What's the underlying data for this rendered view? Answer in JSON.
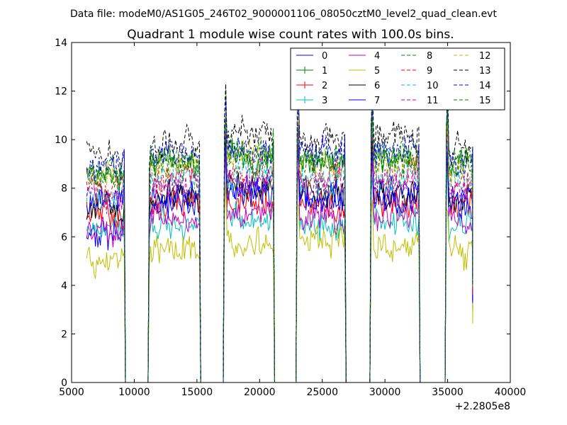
{
  "chart_data": {
    "type": "line",
    "suptitle": "Data file: modeM0/AS1G05_246T02_9000001106_08050cztM0_level2_quad_clean.evt",
    "title": "Quadrant 1 module wise count rates with 100.0s bins.",
    "xlabel": "",
    "ylabel": "",
    "x_offset_label": "+2.2805e8",
    "xlim": [
      5000,
      40000
    ],
    "ylim": [
      0,
      14
    ],
    "xticks": [
      5000,
      10000,
      15000,
      20000,
      25000,
      30000,
      35000,
      40000
    ],
    "xtick_labels": [
      "5000",
      "10000",
      "15000",
      "20000",
      "25000",
      "30000",
      "35000",
      "40000"
    ],
    "yticks": [
      0,
      2,
      4,
      6,
      8,
      10,
      12,
      14
    ],
    "ytick_labels": [
      "0",
      "2",
      "4",
      "6",
      "8",
      "10",
      "12",
      "14"
    ],
    "grid": false,
    "legend_position": "top-right",
    "bin_width_s": 100,
    "segments": [
      {
        "start": 6200,
        "end": 9200
      },
      {
        "start": 11200,
        "end": 15200
      },
      {
        "start": 17200,
        "end": 21100
      },
      {
        "start": 23000,
        "end": 26800
      },
      {
        "start": 28900,
        "end": 32700
      },
      {
        "start": 34900,
        "end": 37000
      }
    ],
    "series": [
      {
        "name": "0",
        "color": "#0000ff",
        "dash": "solid",
        "marker": "none",
        "levels": [
          6.0,
          7.8,
          8.0,
          7.5,
          7.9,
          7.6
        ]
      },
      {
        "name": "1",
        "color": "#008000",
        "dash": "solid",
        "marker": "plus",
        "levels": [
          8.6,
          9.1,
          9.3,
          9.0,
          9.2,
          9.0
        ]
      },
      {
        "name": "2",
        "color": "#ff0000",
        "dash": "solid",
        "marker": "plus",
        "levels": [
          6.9,
          7.3,
          7.5,
          7.3,
          7.4,
          7.2
        ]
      },
      {
        "name": "3",
        "color": "#00bfbf",
        "dash": "solid",
        "marker": "plus",
        "levels": [
          6.3,
          6.5,
          6.8,
          6.5,
          6.6,
          6.4
        ]
      },
      {
        "name": "4",
        "color": "#bf00bf",
        "dash": "solid",
        "marker": "none",
        "levels": [
          6.2,
          6.8,
          7.0,
          6.8,
          6.9,
          6.7
        ]
      },
      {
        "name": "5",
        "color": "#bfbf00",
        "dash": "solid",
        "marker": "none",
        "levels": [
          5.1,
          5.3,
          5.7,
          5.8,
          5.6,
          5.4
        ]
      },
      {
        "name": "6",
        "color": "#000000",
        "dash": "solid",
        "marker": "none",
        "levels": [
          7.3,
          7.6,
          8.0,
          7.9,
          7.8,
          7.5
        ]
      },
      {
        "name": "7",
        "color": "#0000ff",
        "dash": "solid",
        "marker": "none",
        "levels": [
          7.6,
          7.4,
          7.8,
          7.6,
          7.5,
          7.3
        ]
      },
      {
        "name": "8",
        "color": "#008000",
        "dash": "dashed",
        "marker": "none",
        "levels": [
          8.8,
          9.2,
          9.5,
          9.3,
          9.4,
          9.1
        ]
      },
      {
        "name": "9",
        "color": "#ff0000",
        "dash": "dashed",
        "marker": "none",
        "levels": [
          8.0,
          8.4,
          8.7,
          8.5,
          8.6,
          8.3
        ]
      },
      {
        "name": "10",
        "color": "#00bfbf",
        "dash": "dashed",
        "marker": "none",
        "levels": [
          7.8,
          8.3,
          8.6,
          8.3,
          8.4,
          8.2
        ]
      },
      {
        "name": "11",
        "color": "#bf00bf",
        "dash": "dashed",
        "marker": "none",
        "levels": [
          7.7,
          8.2,
          8.4,
          8.2,
          8.3,
          8.0
        ]
      },
      {
        "name": "12",
        "color": "#bfbf00",
        "dash": "dashed",
        "marker": "none",
        "levels": [
          8.5,
          9.0,
          9.3,
          9.0,
          9.1,
          8.8
        ]
      },
      {
        "name": "13",
        "color": "#000000",
        "dash": "dashed",
        "marker": "none",
        "levels": [
          9.4,
          9.9,
          10.2,
          10.0,
          10.1,
          9.7
        ]
      },
      {
        "name": "14",
        "color": "#0000ff",
        "dash": "dashed",
        "marker": "none",
        "levels": [
          8.9,
          9.4,
          9.6,
          9.4,
          9.5,
          9.2
        ]
      },
      {
        "name": "15",
        "color": "#008000",
        "dash": "dashed",
        "marker": "none",
        "levels": [
          8.5,
          9.0,
          9.3,
          9.1,
          9.2,
          8.9
        ]
      }
    ]
  }
}
